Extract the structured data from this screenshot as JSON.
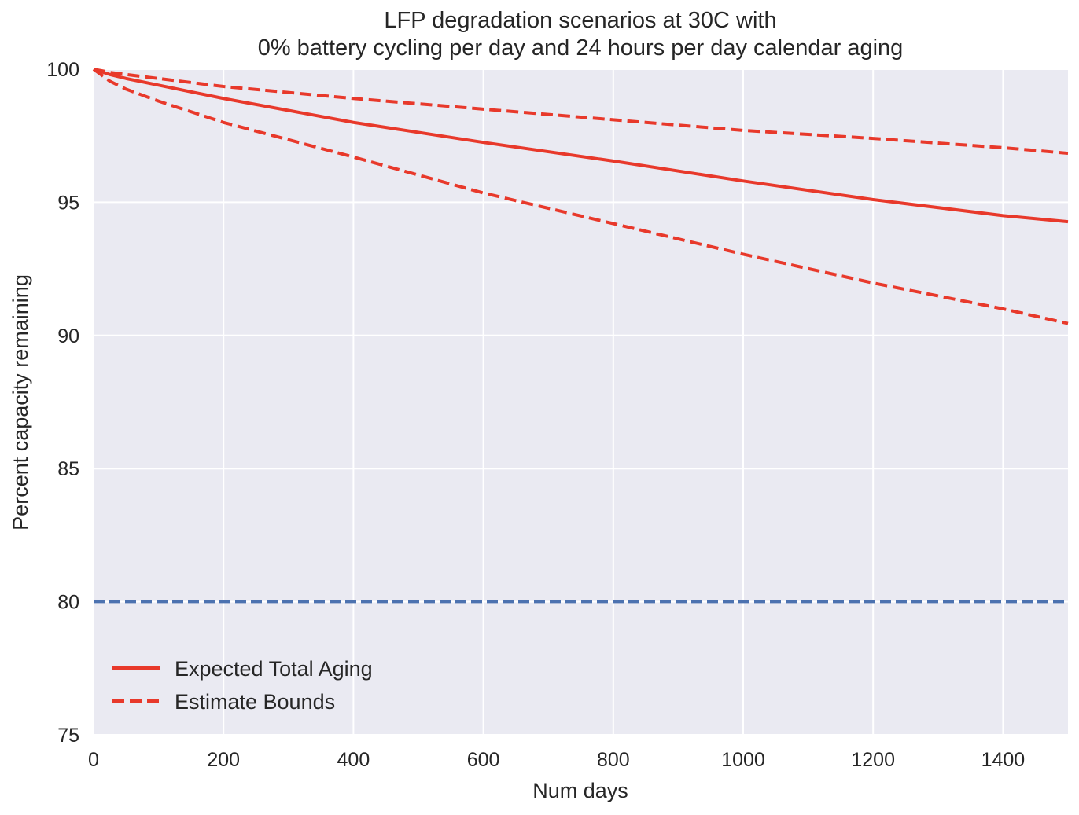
{
  "chart_data": {
    "type": "line",
    "title": [
      "LFP degradation scenarios at 30C with",
      "0% battery cycling per day and 24 hours per day calendar aging"
    ],
    "xlabel": "Num days",
    "ylabel": "Percent capacity remaining",
    "xlim": [
      0,
      1500
    ],
    "ylim": [
      75,
      100
    ],
    "xticks": [
      0,
      200,
      400,
      600,
      800,
      1000,
      1200,
      1400
    ],
    "yticks": [
      75,
      80,
      85,
      90,
      95,
      100
    ],
    "grid": true,
    "legend_position": "lower-left",
    "x": [
      0,
      25,
      50,
      100,
      200,
      400,
      600,
      800,
      1000,
      1200,
      1400,
      1500
    ],
    "series": [
      {
        "name": "Expected Total Aging",
        "style": "solid",
        "color": "#e8392b",
        "in_legend": true,
        "values": [
          100,
          99.8,
          99.65,
          99.4,
          98.9,
          98.0,
          97.25,
          96.55,
          95.8,
          95.1,
          94.5,
          94.27
        ]
      },
      {
        "name": "Estimate Bounds",
        "style": "dashed",
        "color": "#e8392b",
        "in_legend": true,
        "values": [
          100,
          99.88,
          99.8,
          99.65,
          99.35,
          98.9,
          98.5,
          98.1,
          97.7,
          97.4,
          97.05,
          96.84
        ]
      },
      {
        "name": "Estimate Bounds (lower)",
        "style": "dashed",
        "color": "#e8392b",
        "in_legend": false,
        "values": [
          100,
          99.55,
          99.25,
          98.8,
          98.0,
          96.7,
          95.35,
          94.2,
          93.05,
          91.97,
          91.0,
          90.45
        ]
      }
    ],
    "hlines": [
      {
        "y": 80,
        "style": "dashed",
        "color": "#4c72b0"
      }
    ]
  }
}
